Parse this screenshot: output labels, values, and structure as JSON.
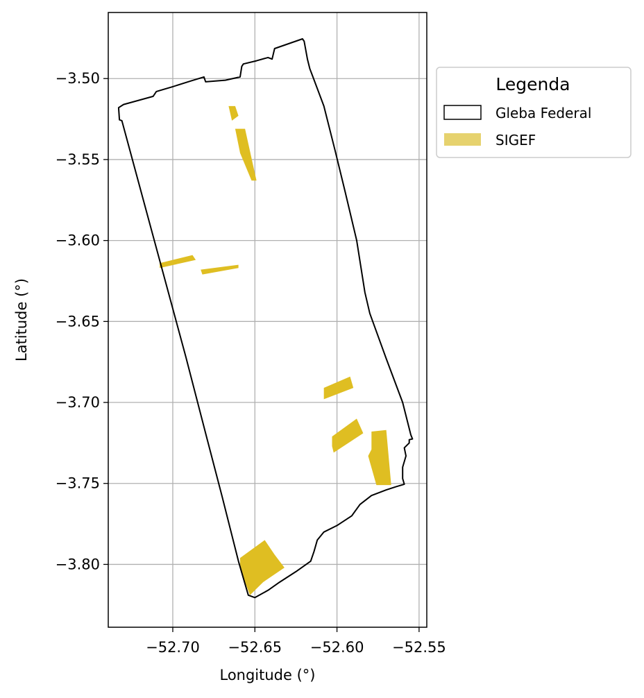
{
  "chart_data": {
    "type": "map",
    "xlabel": "Longitude (°)",
    "ylabel": "Latitude (°)",
    "xlim": [
      -52.7393,
      -52.5453
    ],
    "ylim": [
      -3.8388,
      -3.4592
    ],
    "xticks": [
      -52.7,
      -52.65,
      -52.6,
      -52.55
    ],
    "xtick_labels": [
      "−52.70",
      "−52.65",
      "−52.60",
      "−52.55"
    ],
    "yticks": [
      -3.5,
      -3.55,
      -3.6,
      -3.65,
      -3.7,
      -3.75,
      -3.8
    ],
    "ytick_labels": [
      "−3.50",
      "−3.55",
      "−3.60",
      "−3.65",
      "−3.70",
      "−3.75",
      "−3.80"
    ],
    "grid": true,
    "legend": {
      "title": "Legenda",
      "placement": "outside-upper-right",
      "entries": [
        {
          "label": "Gleba Federal",
          "kind": "outline",
          "edge": "#000000",
          "fill": "#ffffff"
        },
        {
          "label": "SIGEF",
          "kind": "fill",
          "fill": "#e6d26e"
        }
      ]
    },
    "colors": {
      "boundary": "#000000",
      "sigef": "#dfbe22",
      "grid": "#b0b0b0"
    },
    "gleba_federal": [
      [
        -52.733,
        -3.518
      ],
      [
        -52.7325,
        -3.5255
      ],
      [
        -52.731,
        -3.526
      ],
      [
        -52.711,
        -3.601
      ],
      [
        -52.692,
        -3.672
      ],
      [
        -52.679,
        -3.723
      ],
      [
        -52.67,
        -3.758
      ],
      [
        -52.66,
        -3.798
      ],
      [
        -52.654,
        -3.819
      ],
      [
        -52.65,
        -3.8205
      ],
      [
        -52.642,
        -3.816
      ],
      [
        -52.635,
        -3.811
      ],
      [
        -52.625,
        -3.8045
      ],
      [
        -52.616,
        -3.798
      ],
      [
        -52.614,
        -3.792
      ],
      [
        -52.612,
        -3.785
      ],
      [
        -52.608,
        -3.78
      ],
      [
        -52.6,
        -3.776
      ],
      [
        -52.591,
        -3.77
      ],
      [
        -52.586,
        -3.763
      ],
      [
        -52.579,
        -3.7575
      ],
      [
        -52.57,
        -3.754
      ],
      [
        -52.564,
        -3.752
      ],
      [
        -52.559,
        -3.7505
      ],
      [
        -52.56,
        -3.747
      ],
      [
        -52.56,
        -3.74
      ],
      [
        -52.558,
        -3.733
      ],
      [
        -52.559,
        -3.728
      ],
      [
        -52.556,
        -3.725
      ],
      [
        -52.556,
        -3.723
      ],
      [
        -52.554,
        -3.7225
      ],
      [
        -52.555,
        -3.72
      ],
      [
        -52.56,
        -3.7
      ],
      [
        -52.57,
        -3.673
      ],
      [
        -52.58,
        -3.645
      ],
      [
        -52.583,
        -3.632
      ],
      [
        -52.588,
        -3.6
      ],
      [
        -52.595,
        -3.57
      ],
      [
        -52.601,
        -3.545
      ],
      [
        -52.608,
        -3.517
      ],
      [
        -52.615,
        -3.498
      ],
      [
        -52.6165,
        -3.494
      ],
      [
        -52.618,
        -3.488
      ],
      [
        -52.62,
        -3.477
      ],
      [
        -52.621,
        -3.4755
      ],
      [
        -52.638,
        -3.4815
      ],
      [
        -52.6395,
        -3.488
      ],
      [
        -52.642,
        -3.487
      ],
      [
        -52.649,
        -3.489
      ],
      [
        -52.657,
        -3.491
      ],
      [
        -52.658,
        -3.4925
      ],
      [
        -52.659,
        -3.499
      ],
      [
        -52.668,
        -3.501
      ],
      [
        -52.68,
        -3.502
      ],
      [
        -52.681,
        -3.499
      ],
      [
        -52.689,
        -3.5015
      ],
      [
        -52.7,
        -3.505
      ],
      [
        -52.71,
        -3.508
      ],
      [
        -52.712,
        -3.511
      ],
      [
        -52.73,
        -3.516
      ],
      [
        -52.733,
        -3.518
      ]
    ],
    "sigef": [
      [
        [
          -52.666,
          -3.517
        ],
        [
          -52.662,
          -3.517
        ],
        [
          -52.66,
          -3.523
        ],
        [
          -52.664,
          -3.526
        ]
      ],
      [
        [
          -52.662,
          -3.531
        ],
        [
          -52.656,
          -3.531
        ],
        [
          -52.649,
          -3.563
        ],
        [
          -52.652,
          -3.563
        ],
        [
          -52.659,
          -3.546
        ]
      ],
      [
        [
          -52.708,
          -3.614
        ],
        [
          -52.688,
          -3.609
        ],
        [
          -52.686,
          -3.612
        ],
        [
          -52.708,
          -3.617
        ]
      ],
      [
        [
          -52.683,
          -3.618
        ],
        [
          -52.66,
          -3.615
        ],
        [
          -52.66,
          -3.617
        ],
        [
          -52.682,
          -3.621
        ]
      ],
      [
        [
          -52.608,
          -3.691
        ],
        [
          -52.592,
          -3.684
        ],
        [
          -52.59,
          -3.691
        ],
        [
          -52.608,
          -3.698
        ]
      ],
      [
        [
          -52.603,
          -3.721
        ],
        [
          -52.588,
          -3.71
        ],
        [
          -52.584,
          -3.719
        ],
        [
          -52.602,
          -3.731
        ],
        [
          -52.603,
          -3.727
        ]
      ],
      [
        [
          -52.579,
          -3.718
        ],
        [
          -52.57,
          -3.717
        ],
        [
          -52.567,
          -3.751
        ],
        [
          -52.576,
          -3.751
        ],
        [
          -52.581,
          -3.733
        ],
        [
          -52.579,
          -3.729
        ]
      ],
      [
        [
          -52.659,
          -3.796
        ],
        [
          -52.644,
          -3.785
        ],
        [
          -52.638,
          -3.794
        ],
        [
          -52.632,
          -3.802
        ],
        [
          -52.645,
          -3.811
        ],
        [
          -52.653,
          -3.819
        ],
        [
          -52.656,
          -3.811
        ],
        [
          -52.659,
          -3.8
        ]
      ]
    ]
  }
}
